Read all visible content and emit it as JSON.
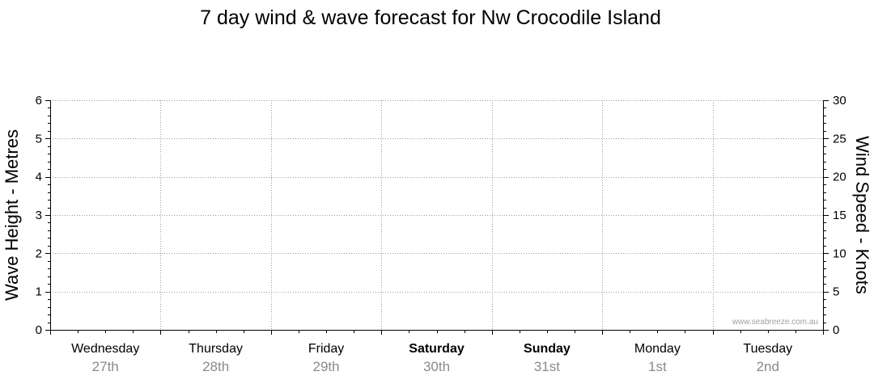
{
  "chart_data": {
    "type": "line",
    "title": "7 day wind & wave forecast for Nw Crocodile Island",
    "y_left": {
      "label": "Wave Height - Metres",
      "range": [
        0,
        6
      ],
      "ticks": [
        "0",
        "1",
        "2",
        "3",
        "4",
        "5",
        "6"
      ]
    },
    "y_right": {
      "label": "Wind Speed - Knots",
      "range": [
        0,
        30
      ],
      "ticks": [
        "0",
        "5",
        "10",
        "15",
        "20",
        "25",
        "30"
      ]
    },
    "days": [
      {
        "name": "Wednesday",
        "date": "27th",
        "bold": false
      },
      {
        "name": "Thursday",
        "date": "28th",
        "bold": false
      },
      {
        "name": "Friday",
        "date": "29th",
        "bold": false
      },
      {
        "name": "Saturday",
        "date": "30th",
        "bold": true
      },
      {
        "name": "Sunday",
        "date": "31st",
        "bold": true
      },
      {
        "name": "Monday",
        "date": "1st",
        "bold": false
      },
      {
        "name": "Tuesday",
        "date": "2nd",
        "bold": false
      }
    ],
    "grid": true,
    "series": [],
    "watermark": "www.seabreeze.com.au"
  }
}
